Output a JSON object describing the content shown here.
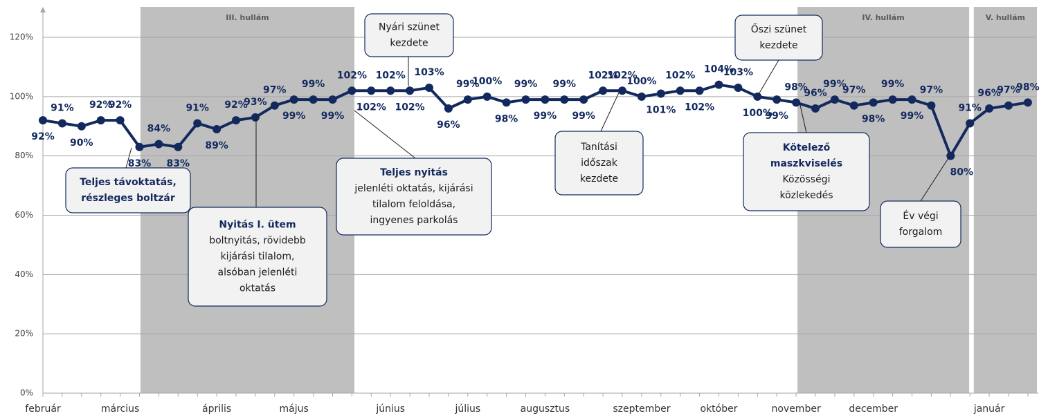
{
  "chart_data": {
    "type": "line",
    "categories": [
      "február",
      null,
      null,
      null,
      "március",
      null,
      null,
      null,
      null,
      "április",
      null,
      null,
      null,
      "május",
      null,
      null,
      null,
      null,
      "június",
      null,
      null,
      null,
      "július",
      null,
      null,
      null,
      "augusztus",
      null,
      null,
      null,
      null,
      "szeptember",
      null,
      null,
      null,
      "október",
      null,
      null,
      null,
      "november",
      null,
      null,
      null,
      "december",
      null,
      null,
      null,
      null,
      null,
      "január",
      null,
      null
    ],
    "series": [
      {
        "name": "Forgalom",
        "color": "#13295e",
        "values": [
          92,
          91,
          90,
          92,
          92,
          83,
          84,
          83,
          91,
          89,
          92,
          93,
          97,
          99,
          99,
          99,
          102,
          102,
          102,
          102,
          103,
          96,
          99,
          100,
          98,
          99,
          99,
          99,
          99,
          102,
          102,
          100,
          101,
          102,
          102,
          104,
          103,
          100,
          99,
          98,
          96,
          99,
          97,
          98,
          99,
          99,
          97,
          80,
          91,
          96,
          97,
          98
        ],
        "value_labels": [
          "92%",
          "91%",
          "90%",
          "92%",
          "92%",
          "83%",
          "84%",
          "83%",
          "91%",
          "89%",
          "92%",
          "93%",
          "97%",
          "99%",
          "99%",
          "99%",
          "102%",
          "102%",
          "102%",
          "102%",
          "103%",
          "96%",
          "99%",
          "100%",
          "98%",
          "99%",
          "99%",
          "99%",
          "99%",
          "102%",
          "102%",
          "100%",
          "101%",
          "102%",
          "102%",
          "104%",
          "103%",
          "100%",
          "99%",
          "98%",
          "96%",
          "99%",
          "97%",
          "98%",
          "99%",
          "99%",
          "97%",
          "80%",
          "91%",
          "96%",
          "97%",
          "98%"
        ]
      }
    ],
    "ylim": [
      0,
      120
    ],
    "yticks": [
      {
        "value": 0,
        "label": "0%"
      },
      {
        "value": 20,
        "label": "20%"
      },
      {
        "value": 40,
        "label": "40%"
      },
      {
        "value": 60,
        "label": "60%"
      },
      {
        "value": 80,
        "label": "80%"
      },
      {
        "value": 100,
        "label": "100%"
      },
      {
        "value": 120,
        "label": "120%"
      }
    ],
    "grid": true,
    "bands": [
      {
        "label": "III. hullám",
        "from": 5.05,
        "to": 16.13
      },
      {
        "label": "IV. hullám",
        "from": 39.07,
        "to": 47.96
      },
      {
        "label": "V. hullám",
        "from": 48.2,
        "to": 51.47
      }
    ],
    "annotations": [
      {
        "lines": [
          {
            "text": "Teljes távoktatás,",
            "bold": true
          },
          {
            "text": "részleges boltzár",
            "bold": true
          }
        ]
      },
      {
        "lines": [
          {
            "text": "Nyitás I. ütem",
            "bold": true
          },
          {
            "text": "boltnyitás, rövidebb",
            "bold": false
          },
          {
            "text": "kijárási tilalom,",
            "bold": false
          },
          {
            "text": "alsóban jelenléti",
            "bold": false
          },
          {
            "text": "oktatás",
            "bold": false
          }
        ]
      },
      {
        "lines": [
          {
            "text": "Teljes nyitás",
            "bold": true
          },
          {
            "text": "jelenléti oktatás, kijárási",
            "bold": false
          },
          {
            "text": "tilalom feloldása,",
            "bold": false
          },
          {
            "text": "ingyenes parkolás",
            "bold": false
          }
        ]
      },
      {
        "lines": [
          {
            "text": "Nyári szünet",
            "bold": false
          },
          {
            "text": "kezdete",
            "bold": false
          }
        ]
      },
      {
        "lines": [
          {
            "text": "Tanítási",
            "bold": false
          },
          {
            "text": "időszak",
            "bold": false
          },
          {
            "text": "kezdete",
            "bold": false
          }
        ]
      },
      {
        "lines": [
          {
            "text": "Őszi szünet",
            "bold": false
          },
          {
            "text": "kezdete",
            "bold": false
          }
        ]
      },
      {
        "lines": [
          {
            "text": "Kötelező",
            "bold": true
          },
          {
            "text": "maszkviselés",
            "bold": true
          },
          {
            "text": "Közösségi",
            "bold": false
          },
          {
            "text": "közlekedés",
            "bold": false
          }
        ]
      },
      {
        "lines": [
          {
            "text": "Év végi",
            "bold": false
          },
          {
            "text": "forgalom",
            "bold": false
          }
        ]
      }
    ]
  }
}
